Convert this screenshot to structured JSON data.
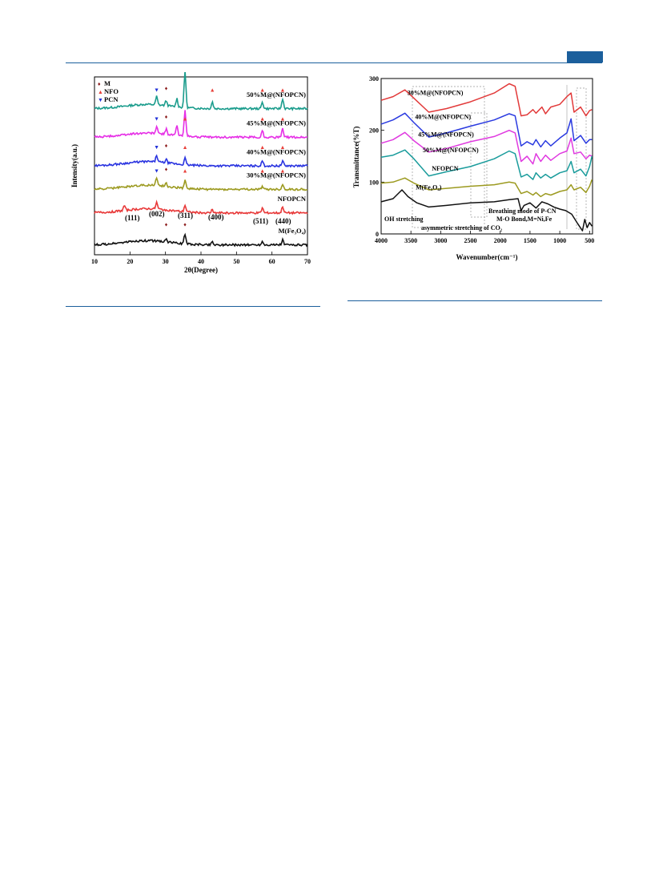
{
  "figure_a": {
    "legend": [
      {
        "symbol": "♦",
        "label": "M",
        "color": "#8b1a1a"
      },
      {
        "symbol": "▲",
        "label": "NFO",
        "color": "#e8403a"
      },
      {
        "symbol": "▼",
        "label": "PCN",
        "color": "#2030d8"
      }
    ],
    "ylabel": "Intensity(a.u.)",
    "xlabel": "2θ(Degree)",
    "xticks": [
      "10",
      "20",
      "30",
      "40",
      "50",
      "60",
      "70"
    ],
    "peak_labels": [
      "(111)",
      "(002)",
      "(311)",
      "(400)",
      "(511)",
      "(440)"
    ]
  },
  "figure_b": {
    "ylabel": "Transmittance(%T)",
    "xlabel": "Wavenumber(cm⁻¹)",
    "xticks": [
      "4000",
      "3500",
      "3000",
      "2500",
      "2000",
      "1500",
      "1000",
      "500"
    ],
    "yticks": [
      "0",
      "100",
      "200",
      "300"
    ],
    "annotations": [
      "OH stretching",
      "asymmetric stretching of CO₂",
      "Breathing mode of P-CN",
      "M-O Bond,M=Ni,Fe"
    ]
  },
  "chart_data": [
    {
      "type": "line",
      "xlabel": "2θ(Degree)",
      "ylabel": "Intensity(a.u.)",
      "xlim": [
        10,
        70
      ],
      "legend_placement": "top-left",
      "series": [
        {
          "name": "50%M@(NFOPCN)",
          "color": "#1a9c8c",
          "baseline": 0.84,
          "peaks": [
            [
              27.5,
              0.05
            ],
            [
              30.2,
              0.03
            ],
            [
              33.2,
              0.05
            ],
            [
              35.5,
              0.22
            ],
            [
              43.2,
              0.04
            ],
            [
              57.3,
              0.04
            ],
            [
              63.0,
              0.06
            ]
          ]
        },
        {
          "name": "45%M@(NFOPCN)",
          "color": "#e62ee6",
          "baseline": 0.67,
          "peaks": [
            [
              27.5,
              0.04
            ],
            [
              30.2,
              0.03
            ],
            [
              33.2,
              0.06
            ],
            [
              35.5,
              0.16
            ],
            [
              57.3,
              0.04
            ],
            [
              63.0,
              0.05
            ]
          ]
        },
        {
          "name": "40%M@(NFOPCN)",
          "color": "#2a34e0",
          "baseline": 0.5,
          "peaks": [
            [
              27.5,
              0.04
            ],
            [
              30.2,
              0.02
            ],
            [
              35.5,
              0.04
            ],
            [
              57.3,
              0.03
            ],
            [
              63.0,
              0.03
            ]
          ]
        },
        {
          "name": "30%M@(NFOPCN)",
          "color": "#9c9a20",
          "baseline": 0.36,
          "peaks": [
            [
              27.5,
              0.05
            ],
            [
              30.2,
              0.02
            ],
            [
              35.5,
              0.05
            ],
            [
              57.3,
              0.02
            ],
            [
              63.0,
              0.03
            ]
          ]
        },
        {
          "name": "NFOPCN",
          "color": "#e83838",
          "baseline": 0.22,
          "peaks": [
            [
              18.4,
              0.03
            ],
            [
              27.5,
              0.04
            ],
            [
              35.5,
              0.04
            ],
            [
              43.2,
              0.02
            ],
            [
              57.3,
              0.03
            ],
            [
              63.0,
              0.04
            ]
          ]
        },
        {
          "name": "M(Fe₃O₄)",
          "color": "#111111",
          "baseline": 0.03,
          "peaks": [
            [
              30.2,
              0.02
            ],
            [
              35.5,
              0.06
            ],
            [
              43.2,
              0.02
            ],
            [
              57.3,
              0.02
            ],
            [
              63.0,
              0.03
            ]
          ]
        }
      ]
    },
    {
      "type": "line",
      "xlabel": "Wavenumber(cm⁻¹)",
      "ylabel": "Transmittance(%T)",
      "xlim": [
        4000,
        450
      ],
      "ylim": [
        0,
        300
      ],
      "series": [
        {
          "name": "30%M@(NFOPCN)",
          "color": "#e23a3a",
          "points": [
            [
              4000,
              258
            ],
            [
              3800,
              265
            ],
            [
              3600,
              278
            ],
            [
              3450,
              262
            ],
            [
              3200,
              235
            ],
            [
              2900,
              242
            ],
            [
              2500,
              255
            ],
            [
              2100,
              272
            ],
            [
              1850,
              290
            ],
            [
              1750,
              285
            ],
            [
              1650,
              228
            ],
            [
              1550,
              230
            ],
            [
              1450,
              240
            ],
            [
              1400,
              233
            ],
            [
              1300,
              245
            ],
            [
              1240,
              232
            ],
            [
              1150,
              245
            ],
            [
              1000,
              250
            ],
            [
              880,
              265
            ],
            [
              810,
              272
            ],
            [
              760,
              235
            ],
            [
              650,
              245
            ],
            [
              560,
              228
            ],
            [
              500,
              238
            ],
            [
              460,
              240
            ]
          ]
        },
        {
          "name": "40%M@(NFOPCN)",
          "color": "#2a3ae0",
          "points": [
            [
              4000,
              212
            ],
            [
              3800,
              220
            ],
            [
              3600,
              233
            ],
            [
              3450,
              215
            ],
            [
              3200,
              187
            ],
            [
              2900,
              195
            ],
            [
              2500,
              208
            ],
            [
              2100,
              220
            ],
            [
              1850,
              232
            ],
            [
              1750,
              228
            ],
            [
              1650,
              170
            ],
            [
              1550,
              178
            ],
            [
              1450,
              172
            ],
            [
              1400,
              182
            ],
            [
              1320,
              168
            ],
            [
              1240,
              180
            ],
            [
              1150,
              170
            ],
            [
              1000,
              185
            ],
            [
              880,
              195
            ],
            [
              810,
              222
            ],
            [
              760,
              180
            ],
            [
              650,
              190
            ],
            [
              560,
              175
            ],
            [
              500,
              182
            ],
            [
              460,
              182
            ]
          ]
        },
        {
          "name": "45%M@(NFOPCN)",
          "color": "#e03ae0",
          "points": [
            [
              4000,
              175
            ],
            [
              3800,
              182
            ],
            [
              3600,
              196
            ],
            [
              3450,
              180
            ],
            [
              3200,
              158
            ],
            [
              2900,
              165
            ],
            [
              2500,
              178
            ],
            [
              2100,
              188
            ],
            [
              1850,
              200
            ],
            [
              1750,
              195
            ],
            [
              1650,
              140
            ],
            [
              1550,
              150
            ],
            [
              1450,
              135
            ],
            [
              1400,
              155
            ],
            [
              1320,
              140
            ],
            [
              1240,
              152
            ],
            [
              1150,
              142
            ],
            [
              1000,
              155
            ],
            [
              880,
              160
            ],
            [
              810,
              185
            ],
            [
              760,
              155
            ],
            [
              650,
              158
            ],
            [
              560,
              145
            ],
            [
              500,
              152
            ],
            [
              460,
              150
            ]
          ]
        },
        {
          "name": "50%M@(NFOPCN)",
          "color": "#1a9c9c",
          "points": [
            [
              4000,
              148
            ],
            [
              3800,
              152
            ],
            [
              3600,
              162
            ],
            [
              3450,
              145
            ],
            [
              3200,
              112
            ],
            [
              2900,
              120
            ],
            [
              2500,
              130
            ],
            [
              2100,
              145
            ],
            [
              1850,
              160
            ],
            [
              1750,
              155
            ],
            [
              1650,
              110
            ],
            [
              1550,
              115
            ],
            [
              1450,
              105
            ],
            [
              1400,
              118
            ],
            [
              1320,
              108
            ],
            [
              1240,
              115
            ],
            [
              1150,
              108
            ],
            [
              1000,
              118
            ],
            [
              880,
              122
            ],
            [
              810,
              140
            ],
            [
              760,
              118
            ],
            [
              650,
              125
            ],
            [
              560,
              112
            ],
            [
              500,
              130
            ],
            [
              460,
              150
            ]
          ]
        },
        {
          "name": "NFOPCN",
          "color": "#9c9a20",
          "points": [
            [
              4000,
              98
            ],
            [
              3800,
              100
            ],
            [
              3600,
              108
            ],
            [
              3450,
              98
            ],
            [
              3200,
              85
            ],
            [
              2900,
              88
            ],
            [
              2500,
              92
            ],
            [
              2100,
              95
            ],
            [
              1850,
              100
            ],
            [
              1750,
              98
            ],
            [
              1650,
              78
            ],
            [
              1550,
              82
            ],
            [
              1450,
              75
            ],
            [
              1400,
              80
            ],
            [
              1320,
              72
            ],
            [
              1240,
              78
            ],
            [
              1150,
              75
            ],
            [
              1000,
              82
            ],
            [
              880,
              85
            ],
            [
              810,
              95
            ],
            [
              760,
              85
            ],
            [
              650,
              90
            ],
            [
              560,
              80
            ],
            [
              500,
              92
            ],
            [
              460,
              105
            ]
          ]
        },
        {
          "name": "M(Fe₃O₄)",
          "color": "#111111",
          "points": [
            [
              4000,
              62
            ],
            [
              3800,
              68
            ],
            [
              3650,
              85
            ],
            [
              3550,
              72
            ],
            [
              3400,
              60
            ],
            [
              3200,
              52
            ],
            [
              2900,
              55
            ],
            [
              2500,
              60
            ],
            [
              2100,
              62
            ],
            [
              1850,
              66
            ],
            [
              1700,
              68
            ],
            [
              1650,
              45
            ],
            [
              1600,
              55
            ],
            [
              1500,
              60
            ],
            [
              1400,
              50
            ],
            [
              1300,
              62
            ],
            [
              1200,
              58
            ],
            [
              1100,
              52
            ],
            [
              1000,
              48
            ],
            [
              900,
              45
            ],
            [
              800,
              38
            ],
            [
              700,
              20
            ],
            [
              620,
              6
            ],
            [
              580,
              28
            ],
            [
              540,
              12
            ],
            [
              500,
              22
            ],
            [
              460,
              15
            ]
          ]
        }
      ]
    }
  ]
}
